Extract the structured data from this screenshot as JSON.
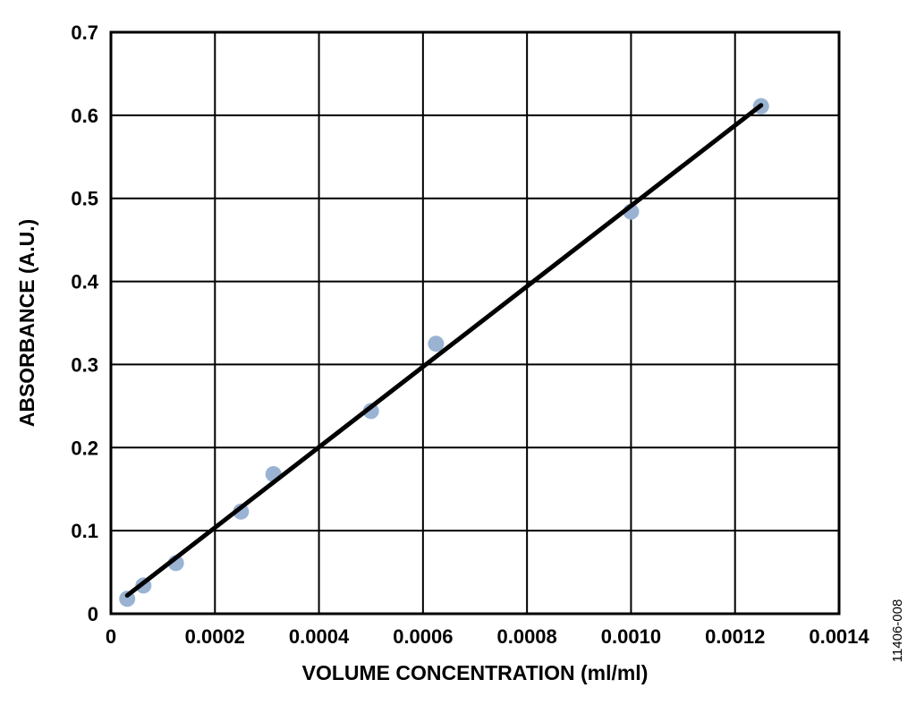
{
  "chart_data": {
    "type": "scatter",
    "title": "",
    "xlabel": "VOLUME CONCENTRATION (ml/ml)",
    "ylabel": "ABSORBANCE (A.U.)",
    "xlim": [
      0,
      0.0014
    ],
    "ylim": [
      0,
      0.7
    ],
    "x_ticks": [
      "0",
      "0.0002",
      "0.0004",
      "0.0006",
      "0.0008",
      "0.0010",
      "0.0012",
      "0.0014"
    ],
    "y_ticks": [
      "0",
      "0.1",
      "0.2",
      "0.3",
      "0.4",
      "0.5",
      "0.6",
      "0.7"
    ],
    "grid": true,
    "series": [
      {
        "x": [
          3.13e-05,
          6.25e-05,
          0.000125,
          0.00025,
          0.0003125,
          0.0005,
          0.000625,
          0.001,
          0.00125
        ],
        "y": [
          0.018,
          0.034,
          0.061,
          0.123,
          0.168,
          0.244,
          0.325,
          0.484,
          0.611
        ]
      }
    ],
    "fit_line": {
      "x": [
        3.13e-05,
        0.00125
      ],
      "y": [
        0.022,
        0.612
      ]
    },
    "marker_color": "#9ab3d3",
    "line_color": "#000000"
  },
  "figure_id": "11406-008"
}
